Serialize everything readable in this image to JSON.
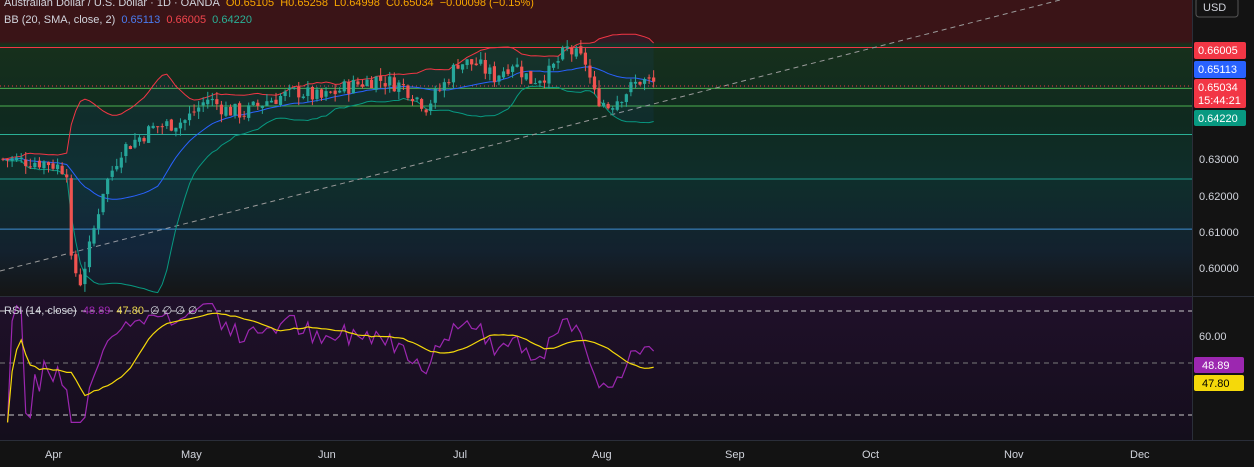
{
  "symbol_line": {
    "name": "Australian Dollar / U.S. Dollar · 1D · OANDA",
    "open": "O0.65105",
    "high": "H0.65258",
    "low": "L0.64998",
    "close": "C0.65034",
    "change": "−0.00098 (−0.15%)"
  },
  "bb_line": {
    "label": "BB (20, SMA, close, 2)",
    "mid": "0.65113",
    "upper": "0.66005",
    "lower": "0.64220"
  },
  "rsi_line": {
    "label": "RSI (14, close)",
    "value": "48.89",
    "ma": "47.80",
    "extra": "∅ ∅ ∅ ∅"
  },
  "currency": "USD",
  "colors": {
    "up": "#26a69a",
    "down": "#ef5350",
    "bb_mid": "#2962ff",
    "bb_upper": "#f23645",
    "bb_lower": "#089981",
    "rsi": "#9c27b0",
    "rsi_ma": "#f5d90a",
    "badge_current": "#f23645",
    "badge_mid": "#2962ff",
    "badge_lower": "#089981",
    "badge_upper": "#f23645"
  },
  "badges": {
    "upper": "0.66005",
    "mid": "0.65113",
    "current": "0.65034",
    "countdown": "15:44:21",
    "lower": "0.64220",
    "rsi": "48.89",
    "rsi_ma": "47.80"
  },
  "chart_data": [
    {
      "type": "candlestick",
      "y_axis_ticks": [
        "0.63000",
        "0.62000",
        "0.61000",
        "0.60000"
      ],
      "ylim": [
        0.592,
        0.673
      ],
      "x_axis_labels": [
        "Apr",
        "May",
        "Jun",
        "Jul",
        "Aug",
        "Sep",
        "Oct",
        "Nov",
        "Dec"
      ],
      "indicators": [
        "Bollinger Bands (20, SMA, close, 2)"
      ]
    },
    {
      "type": "line",
      "y_axis_ticks": [
        "60.00"
      ],
      "ylim": [
        10,
        75
      ],
      "series": [
        {
          "name": "RSI (14, close)"
        },
        {
          "name": "MA"
        }
      ],
      "levels": [
        70,
        50,
        30
      ]
    }
  ]
}
